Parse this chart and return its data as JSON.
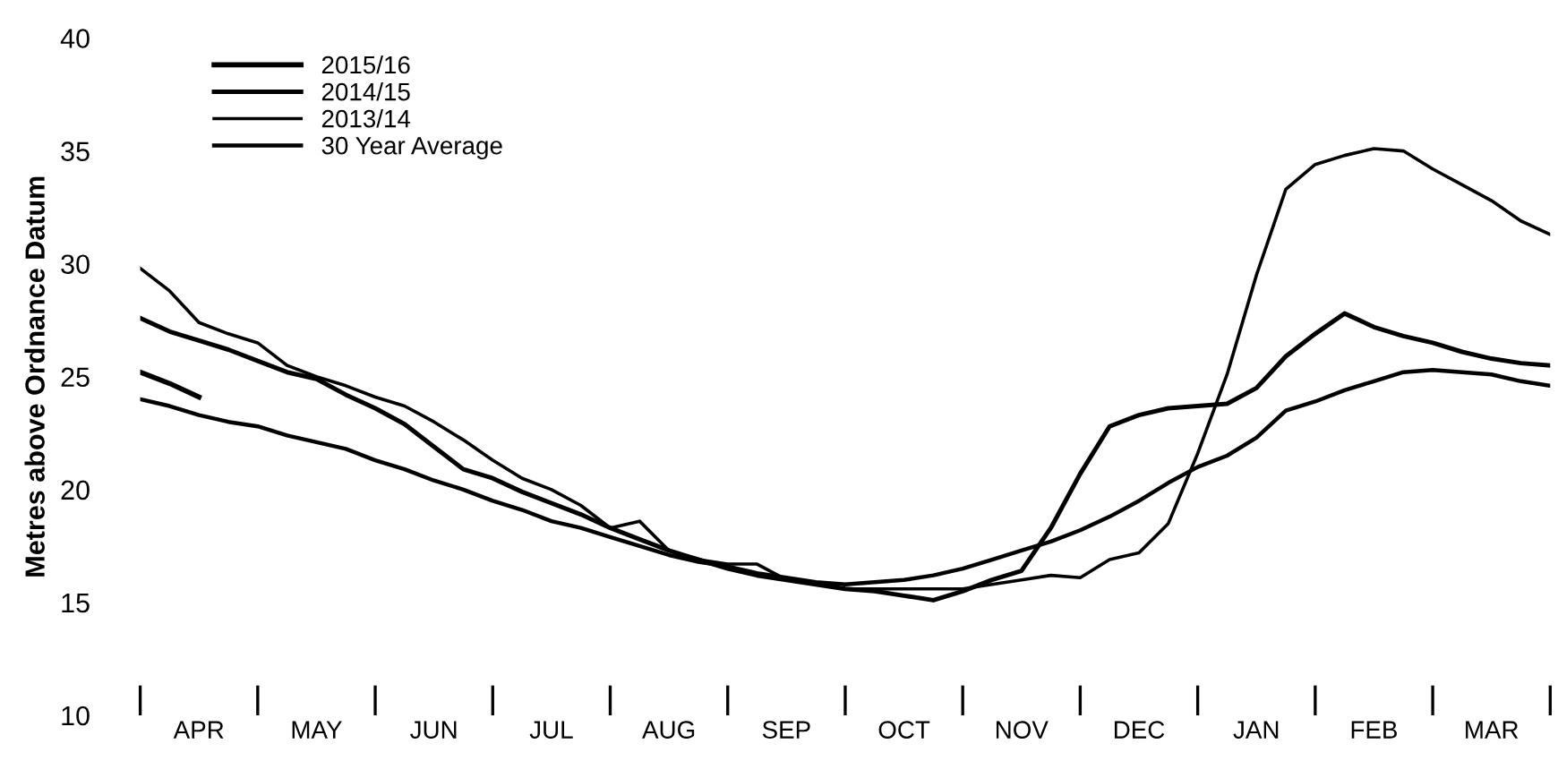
{
  "chart_data": {
    "type": "line",
    "ylabel": "Metres above Ordnance Datum",
    "ylim": [
      10,
      40
    ],
    "yticks": [
      10,
      15,
      20,
      25,
      30,
      35,
      40
    ],
    "categories": [
      null,
      null,
      "APR",
      null,
      null,
      null,
      "MAY",
      null,
      null,
      null,
      "JUN",
      null,
      null,
      null,
      "JUL",
      null,
      null,
      null,
      "AUG",
      null,
      null,
      null,
      "SEP",
      null,
      null,
      null,
      "OCT",
      null,
      null,
      null,
      "NOV",
      null,
      null,
      null,
      "DEC",
      null,
      null,
      null,
      "JAN",
      null,
      null,
      null,
      "FEB",
      null,
      null,
      null,
      "MAR",
      null,
      null
    ],
    "legend": "top left",
    "grid": false,
    "marker": "none",
    "line_style": "solid",
    "series": [
      {
        "name": "2015/16",
        "color": "#000000",
        "values": [
          25.2,
          24.7,
          24.1,
          null,
          null,
          null,
          null,
          null,
          null,
          null,
          null,
          null,
          null,
          null,
          null,
          null,
          null,
          null,
          null,
          null,
          null,
          null,
          null,
          null,
          null,
          null,
          null,
          null,
          null,
          null,
          null,
          null,
          null,
          null,
          null,
          null,
          null,
          null,
          null,
          null,
          null,
          null,
          null,
          null,
          null,
          null,
          null,
          null,
          null
        ]
      },
      {
        "name": "2014/15",
        "color": "#000000",
        "values": [
          27.6,
          27.0,
          26.6,
          26.2,
          25.7,
          25.2,
          24.9,
          24.2,
          23.6,
          22.9,
          21.9,
          20.9,
          20.5,
          19.9,
          19.4,
          18.9,
          18.3,
          17.8,
          17.3,
          16.9,
          16.5,
          16.2,
          16.0,
          15.8,
          15.6,
          15.5,
          15.3,
          15.1,
          15.5,
          16.0,
          16.4,
          18.3,
          20.7,
          22.8,
          23.3,
          23.6,
          23.7,
          23.8,
          24.5,
          25.9,
          26.9,
          27.8,
          27.2,
          26.8,
          26.5,
          26.1,
          25.8,
          25.6,
          25.5
        ]
      },
      {
        "name": "2013/14",
        "color": "#000000",
        "values": [
          29.8,
          28.8,
          27.4,
          26.9,
          26.5,
          25.5,
          25.0,
          24.6,
          24.1,
          23.7,
          23.0,
          22.2,
          21.3,
          20.5,
          20.0,
          19.3,
          18.3,
          18.6,
          17.3,
          16.9,
          16.7,
          16.7,
          16.0,
          15.8,
          15.6,
          15.6,
          15.6,
          15.6,
          15.6,
          15.8,
          16.0,
          16.2,
          16.1,
          16.9,
          17.2,
          18.5,
          21.6,
          25.1,
          29.5,
          33.3,
          34.4,
          34.8,
          35.1,
          35.0,
          34.2,
          33.5,
          32.8,
          31.9,
          31.3
        ]
      },
      {
        "name": "30 Year Average",
        "color": "#000000",
        "values": [
          24.0,
          23.7,
          23.3,
          23.0,
          22.8,
          22.4,
          22.1,
          21.8,
          21.3,
          20.9,
          20.4,
          20.0,
          19.5,
          19.1,
          18.6,
          18.3,
          17.9,
          17.5,
          17.1,
          16.8,
          16.6,
          16.3,
          16.1,
          15.9,
          15.8,
          15.9,
          16.0,
          16.2,
          16.5,
          16.9,
          17.3,
          17.7,
          18.2,
          18.8,
          19.5,
          20.3,
          21.0,
          21.5,
          22.3,
          23.5,
          23.9,
          24.4,
          24.8,
          25.2,
          25.3,
          25.2,
          25.1,
          24.8,
          24.6
        ]
      }
    ]
  }
}
